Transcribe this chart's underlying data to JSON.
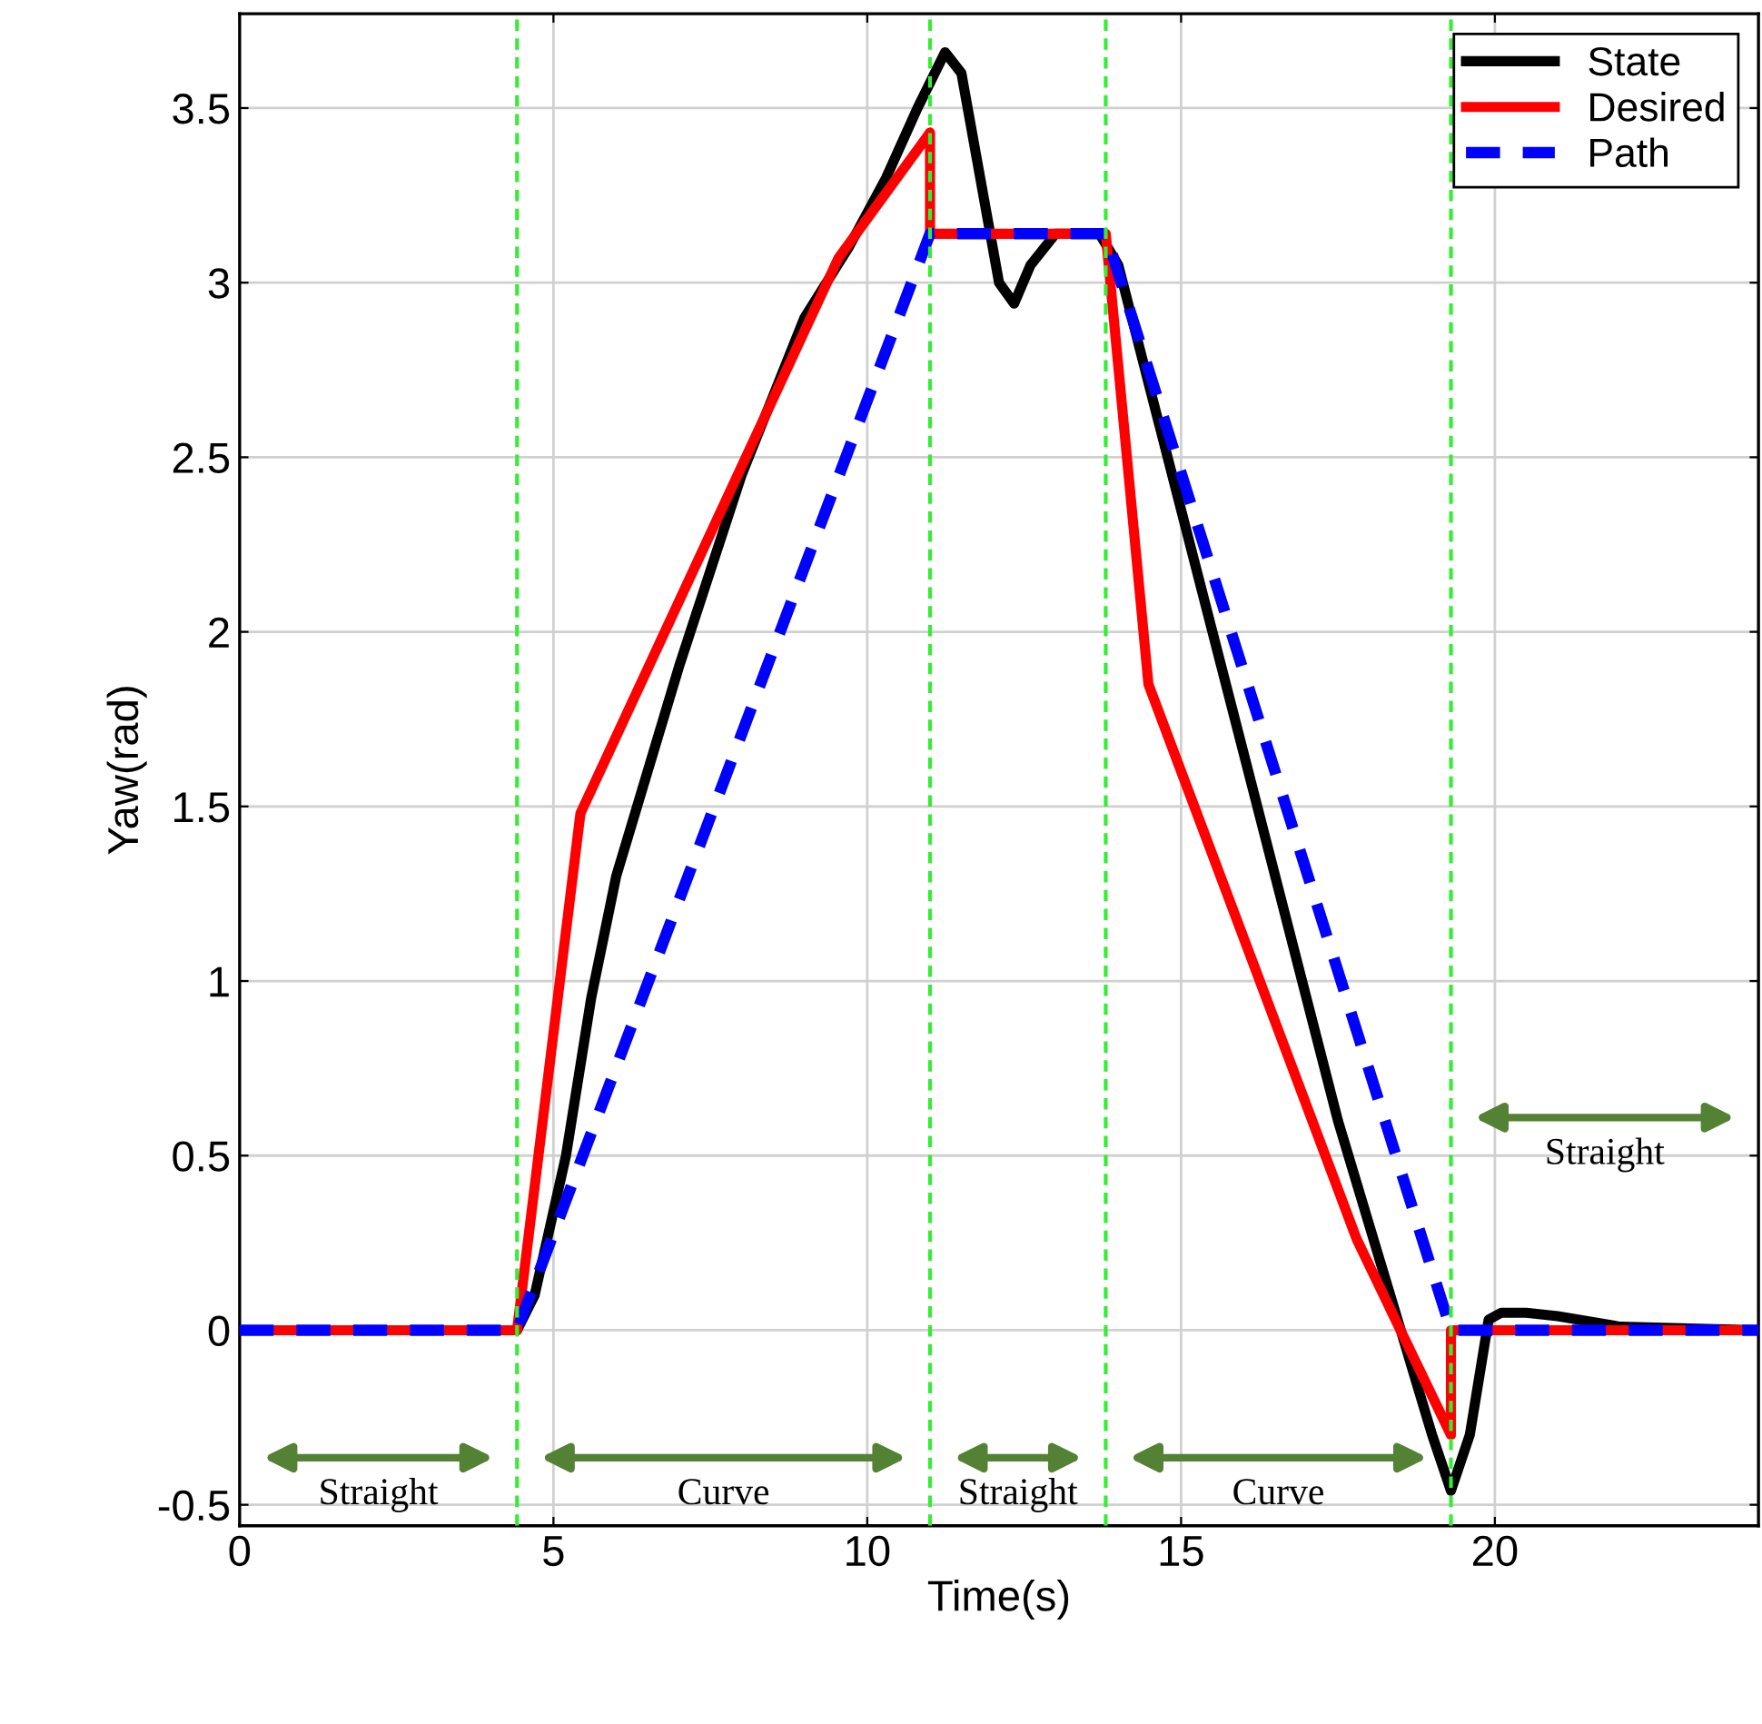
{
  "chart_data": {
    "type": "line",
    "xlabel": "Time(s)",
    "ylabel": "Yaw(rad)",
    "xlim": [
      0,
      24.2
    ],
    "ylim": [
      -0.56,
      3.77
    ],
    "xticks": [
      0,
      5,
      10,
      15,
      20
    ],
    "yticks": [
      {
        "value": -0.5,
        "label": "-0.5"
      },
      0,
      0.5,
      1,
      1.5,
      2,
      2.5,
      3,
      3.5
    ],
    "grid": true,
    "legend": "top right",
    "marker": "none",
    "series": [
      {
        "name": "State",
        "color": "#000000",
        "line_style": "solid",
        "x": [
          0,
          4.42,
          4.7,
          5.2,
          5.6,
          6.0,
          7,
          8,
          9,
          9.7,
          10.3,
          10.8,
          11.24,
          11.5,
          11.8,
          12.1,
          12.34,
          12.6,
          13.0,
          13.7,
          14.0,
          14.5,
          15.5,
          16.5,
          17.5,
          18.5,
          19.0,
          19.3,
          19.6,
          19.9,
          20.1,
          20.5,
          21,
          22,
          24.2
        ],
        "values": [
          0,
          0,
          0.1,
          0.5,
          0.95,
          1.3,
          1.9,
          2.45,
          2.9,
          3.1,
          3.3,
          3.5,
          3.66,
          3.6,
          3.3,
          3.0,
          2.94,
          3.05,
          3.14,
          3.14,
          3.05,
          2.7,
          2.0,
          1.3,
          0.6,
          0,
          -0.3,
          -0.46,
          -0.3,
          0.03,
          0.05,
          0.05,
          0.04,
          0.01,
          0
        ]
      },
      {
        "name": "Desired",
        "color": "#ff0000",
        "line_style": "solid",
        "x": [
          0,
          4.42,
          5.43,
          9.54,
          11.0,
          11.0,
          13.8,
          14.48,
          17.8,
          19.3,
          19.3,
          24.2
        ],
        "values": [
          0,
          0,
          1.48,
          3.07,
          3.43,
          3.14,
          3.14,
          1.85,
          0.26,
          -0.3,
          0,
          0
        ]
      },
      {
        "name": "Path",
        "color": "#0000ff",
        "line_style": "dashed",
        "x": [
          0,
          4.42,
          11.0,
          13.8,
          19.3,
          24.2
        ],
        "values": [
          0,
          0,
          3.14,
          3.14,
          0,
          0
        ]
      }
    ],
    "ref_lines": [
      {
        "axis": "x",
        "value": 4.42,
        "color": "#33ee33",
        "line_style": "dashed"
      },
      {
        "axis": "x",
        "value": 11.0,
        "color": "#33ee33",
        "line_style": "dashed"
      },
      {
        "axis": "x",
        "value": 13.8,
        "color": "#33ee33",
        "line_style": "dashed"
      },
      {
        "axis": "x",
        "value": 19.3,
        "color": "#33ee33",
        "line_style": "dashed"
      }
    ],
    "annotations": [
      "Straight",
      "Curve",
      "Straight",
      "Curve",
      "Straight"
    ]
  }
}
